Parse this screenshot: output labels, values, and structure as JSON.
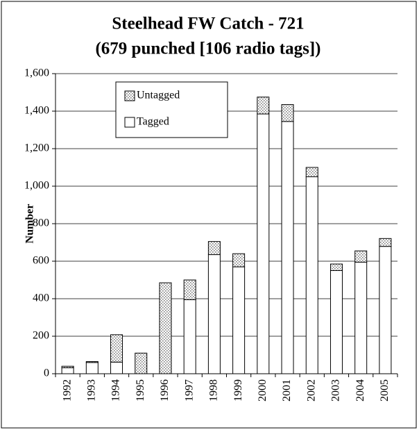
{
  "chart_data": {
    "type": "stacked_bar",
    "title": "Steelhead FW Catch - 721",
    "subtitle": "(679 punched [106 radio tags])",
    "y_label": "Number",
    "categories": [
      "1992",
      "1993",
      "1994",
      "1995",
      "1996",
      "1997",
      "1998",
      "1999",
      "2000",
      "2001",
      "2002",
      "2003",
      "2004",
      "2005"
    ],
    "series": [
      {
        "name": "Tagged",
        "color": "#ffffff",
        "values": [
          32,
          60,
          62,
          0,
          0,
          395,
          635,
          570,
          1385,
          1345,
          1050,
          550,
          595,
          679
        ]
      },
      {
        "name": "Untagged",
        "color": "#7f7f7f",
        "values": [
          8,
          5,
          146,
          110,
          485,
          105,
          70,
          70,
          90,
          90,
          50,
          35,
          60,
          42
        ]
      }
    ],
    "ylim": [
      0,
      1600
    ],
    "yticks": [
      0,
      200,
      400,
      600,
      800,
      {
        "value": 1000,
        "label": "1,000"
      },
      {
        "value": 1200,
        "label": "1,200"
      },
      {
        "value": 1400,
        "label": "1,400"
      },
      {
        "value": 1600,
        "label": "1,600"
      }
    ],
    "grid": true,
    "legend": "top-left"
  }
}
